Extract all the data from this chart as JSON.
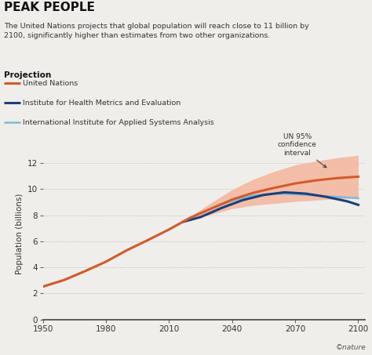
{
  "title": "PEAK PEOPLE",
  "subtitle": "The United Nations projects that global population will reach close to 11 billion by\n2100, significantly higher than estimates from two other organizations.",
  "legend_title": "Projection",
  "legend_items": [
    {
      "label": "United Nations",
      "color": "#d45b2a",
      "lw": 2.2
    },
    {
      "label": "Institute for Health Metrics and Evaluation",
      "color": "#1b3f7a",
      "lw": 2.2
    },
    {
      "label": "International Institute for Applied Systems Analysis",
      "color": "#7bbcd5",
      "lw": 1.8
    }
  ],
  "annotation_text": "UN 95%\nconfidence\ninterval",
  "un_color": "#d45b2a",
  "ihme_color": "#1b3f7a",
  "iiasa_color": "#7bbcd5",
  "hist_color": "#a0a0a0",
  "ci_color": "#f4b8a0",
  "ylabel": "Population (billions)",
  "xlim": [
    1950,
    2103
  ],
  "ylim": [
    0,
    13.2
  ],
  "xticks": [
    1950,
    1980,
    2010,
    2040,
    2070,
    2100
  ],
  "yticks": [
    0,
    2,
    4,
    6,
    8,
    10,
    12
  ],
  "background_color": "#f0eeea",
  "grid_color": "#aaaaaa",
  "nature_credit": "©nature",
  "un_data": {
    "years": [
      1950,
      1960,
      1970,
      1980,
      1990,
      2000,
      2010,
      2020,
      2030,
      2040,
      2050,
      2060,
      2070,
      2080,
      2090,
      2100
    ],
    "values": [
      2.52,
      3.02,
      3.7,
      4.43,
      5.31,
      6.09,
      6.9,
      7.79,
      8.5,
      9.19,
      9.71,
      10.09,
      10.43,
      10.67,
      10.84,
      10.95
    ]
  },
  "un_ci_upper": {
    "years": [
      2020,
      2030,
      2040,
      2050,
      2060,
      2070,
      2080,
      2090,
      2100
    ],
    "values": [
      7.9,
      8.95,
      9.95,
      10.75,
      11.35,
      11.85,
      12.15,
      12.4,
      12.6
    ]
  },
  "un_ci_lower": {
    "years": [
      2020,
      2030,
      2040,
      2050,
      2060,
      2070,
      2080,
      2090,
      2100
    ],
    "values": [
      7.7,
      8.05,
      8.5,
      8.75,
      8.9,
      9.05,
      9.15,
      9.25,
      9.35
    ]
  },
  "ihme_data": {
    "years": [
      2017,
      2025,
      2035,
      2045,
      2055,
      2065,
      2075,
      2085,
      2095,
      2100
    ],
    "values": [
      7.5,
      7.85,
      8.55,
      9.15,
      9.55,
      9.75,
      9.65,
      9.4,
      9.05,
      8.79
    ]
  },
  "iiasa_data": {
    "years": [
      1950,
      1960,
      1970,
      1980,
      1990,
      2000,
      2010,
      2020,
      2030,
      2040,
      2050,
      2060,
      2070,
      2080,
      2090,
      2100
    ],
    "values": [
      2.52,
      3.02,
      3.7,
      4.43,
      5.31,
      6.09,
      6.9,
      7.79,
      8.5,
      9.1,
      9.5,
      9.65,
      9.6,
      9.5,
      9.4,
      9.3
    ]
  }
}
